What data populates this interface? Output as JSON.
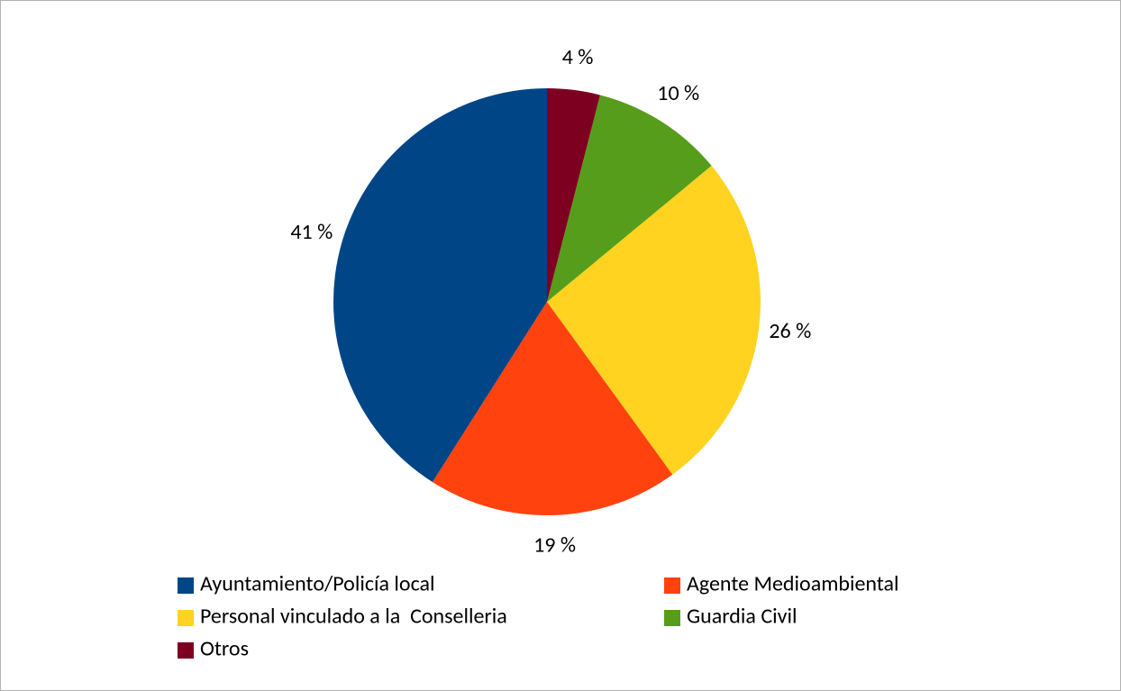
{
  "chart_data": {
    "type": "pie",
    "categories": [
      "Ayuntamiento/Policía local",
      "Agente Medioambiental",
      "Personal vinculado a la  Conselleria",
      "Guardia Civil",
      "Otros"
    ],
    "values": [
      41,
      19,
      26,
      10,
      4
    ],
    "value_labels": [
      "41 %",
      "19 %",
      "26 %",
      "10 %",
      "4 %"
    ],
    "colors": [
      "#004586",
      "#ff420e",
      "#ffd320",
      "#579d1c",
      "#7e0021"
    ],
    "legend": "bottom"
  }
}
